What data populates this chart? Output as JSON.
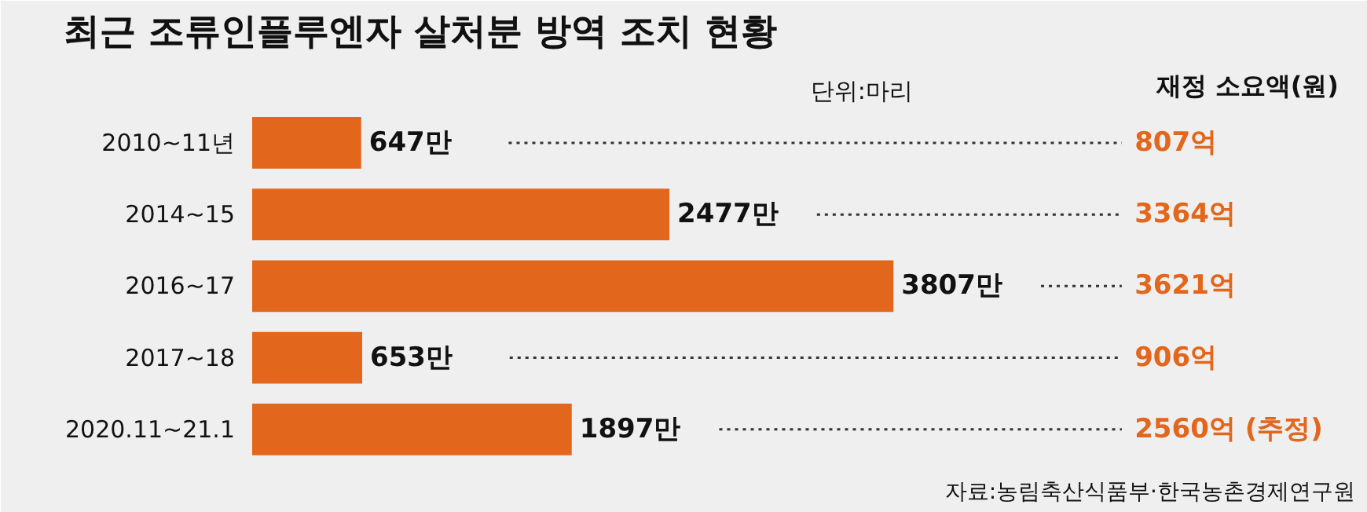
{
  "chart_data": {
    "type": "bar",
    "orientation": "horizontal",
    "title": "최근 조류인플루엔자 살처분 방역 조치 현황",
    "subtitle": "단위:마리",
    "legend_title": "재정 소요액(원)",
    "categories": [
      "2010~11년",
      "2014~15",
      "2016~17",
      "2017~18",
      "2020.11~21.1"
    ],
    "values": [
      647,
      2477,
      3807,
      653,
      1897
    ],
    "value_labels": [
      "647만",
      "2477만",
      "3807만",
      "653만",
      "1897만"
    ],
    "color": "#e2661c",
    "grid": false,
    "annotations": [
      "807억",
      "3364억",
      "3621억",
      "906억",
      "2560억 (추정)",
      "자료:농림축산식품부·한국농촌경제연구원"
    ]
  }
}
